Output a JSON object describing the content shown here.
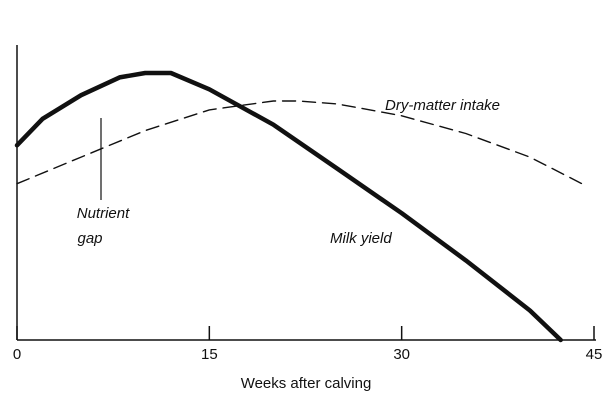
{
  "chart_data": {
    "type": "line",
    "xlabel": "Weeks after calving",
    "xlim": [
      0,
      45
    ],
    "xticks": [
      0,
      15,
      30,
      45
    ],
    "ylim": [
      0,
      100
    ],
    "series": [
      {
        "name": "Milk yield",
        "color": "#111111",
        "style": "solid",
        "x": [
          0,
          2,
          5,
          8,
          10,
          12,
          15,
          20,
          25,
          30,
          35,
          40,
          42.4
        ],
        "values": [
          66,
          75,
          83,
          89,
          90.5,
          90.5,
          85,
          73,
          58,
          43,
          27,
          10,
          0
        ]
      },
      {
        "name": "Dry-matter intake",
        "color": "#111111",
        "style": "dashed",
        "x": [
          0,
          5,
          10,
          15,
          20,
          22,
          25,
          30,
          35,
          40,
          44.5
        ],
        "values": [
          53,
          62,
          71,
          78,
          81,
          81,
          80,
          76,
          70,
          62,
          52
        ]
      }
    ],
    "annotation": [
      "Nutrient",
      "gap"
    ]
  }
}
